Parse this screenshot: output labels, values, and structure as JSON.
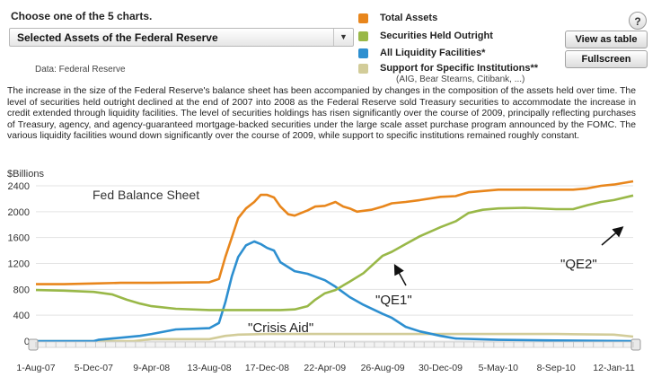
{
  "header": {
    "prompt": "Choose one of the 5 charts.",
    "selected_chart": "Selected Assets of the Federal Reserve",
    "source": "Data: Federal Reserve",
    "help_label": "?"
  },
  "buttons": {
    "view_table": "View as table",
    "fullscreen": "Fullscreen"
  },
  "legend": {
    "items": [
      {
        "label": "Total Assets",
        "color": "#e8861c"
      },
      {
        "label": "Securities Held Outright",
        "color": "#99b848"
      },
      {
        "label": "All Liquidity Facilities*",
        "color": "#2d8fd0"
      },
      {
        "label": "Support for Specific Institutions**",
        "color": "#d2cc99"
      }
    ],
    "note": "(AIG, Bear Stearns, Citibank, ...)"
  },
  "description": "The increase in the size of the Federal Reserve's balance sheet has been accompanied by changes in the composition of the assets held over time. The level of securities held outright declined at the end of 2007 into 2008 as the Federal Reserve sold Treasury securities to accommodate the increase in credit extended through liquidity facilities. The level of securities holdings has risen significantly over the course of 2009, principally reflecting purchases of Treasury, agency, and agency-guaranteed mortgage-backed securities under the large scale asset purchase program announced by the FOMC. The various liquidity facilities wound down significantly over the course of 2009, while support to specific institutions remained roughly constant.",
  "chart_data": {
    "type": "line",
    "title": "Fed Balance Sheet",
    "ylabel": "$Billions",
    "xlabel": "",
    "ylim": [
      0,
      2400
    ],
    "yticks": [
      0,
      400,
      800,
      1200,
      1600,
      2000,
      2400
    ],
    "xlim": [
      "2007-08-01",
      "2011-02-23"
    ],
    "x_tick_labels": [
      "1-Aug-07",
      "5-Dec-07",
      "9-Apr-08",
      "13-Aug-08",
      "17-Dec-08",
      "22-Apr-09",
      "26-Aug-09",
      "30-Dec-09",
      "5-May-10",
      "8-Sep-10",
      "12-Jan-11"
    ],
    "x_tick_dates": [
      "2007-08-01",
      "2007-12-05",
      "2008-04-09",
      "2008-08-13",
      "2008-12-17",
      "2009-04-22",
      "2009-08-26",
      "2009-12-30",
      "2010-05-05",
      "2010-09-08",
      "2011-01-12"
    ],
    "grid": true,
    "annotations": [
      "\"Crisis Aid\"",
      "\"QE1\"",
      "\"QE2\""
    ],
    "series": [
      {
        "name": "Total Assets",
        "color": "#e8861c",
        "points": [
          [
            "2007-08-01",
            880
          ],
          [
            "2007-10-01",
            880
          ],
          [
            "2007-12-05",
            890
          ],
          [
            "2008-02-01",
            900
          ],
          [
            "2008-04-09",
            900
          ],
          [
            "2008-06-01",
            905
          ],
          [
            "2008-08-13",
            910
          ],
          [
            "2008-09-03",
            960
          ],
          [
            "2008-09-17",
            1300
          ],
          [
            "2008-10-01",
            1600
          ],
          [
            "2008-10-15",
            1900
          ],
          [
            "2008-11-01",
            2050
          ],
          [
            "2008-11-19",
            2150
          ],
          [
            "2008-12-03",
            2260
          ],
          [
            "2008-12-17",
            2260
          ],
          [
            "2009-01-01",
            2220
          ],
          [
            "2009-01-15",
            2080
          ],
          [
            "2009-02-01",
            1960
          ],
          [
            "2009-02-15",
            1940
          ],
          [
            "2009-03-01",
            1980
          ],
          [
            "2009-03-15",
            2020
          ],
          [
            "2009-04-01",
            2080
          ],
          [
            "2009-04-22",
            2090
          ],
          [
            "2009-05-15",
            2150
          ],
          [
            "2009-06-01",
            2080
          ],
          [
            "2009-06-15",
            2050
          ],
          [
            "2009-07-01",
            2000
          ],
          [
            "2009-08-01",
            2030
          ],
          [
            "2009-08-26",
            2080
          ],
          [
            "2009-09-15",
            2130
          ],
          [
            "2009-10-15",
            2150
          ],
          [
            "2009-11-15",
            2180
          ],
          [
            "2009-12-30",
            2230
          ],
          [
            "2010-02-01",
            2240
          ],
          [
            "2010-03-01",
            2300
          ],
          [
            "2010-05-05",
            2340
          ],
          [
            "2010-07-01",
            2340
          ],
          [
            "2010-09-08",
            2340
          ],
          [
            "2010-10-15",
            2340
          ],
          [
            "2010-11-15",
            2360
          ],
          [
            "2010-12-15",
            2400
          ],
          [
            "2011-01-12",
            2420
          ],
          [
            "2011-02-23",
            2470
          ]
        ]
      },
      {
        "name": "Securities Held Outright",
        "color": "#99b848",
        "points": [
          [
            "2007-08-01",
            790
          ],
          [
            "2007-10-01",
            780
          ],
          [
            "2007-12-05",
            760
          ],
          [
            "2008-01-15",
            720
          ],
          [
            "2008-02-15",
            640
          ],
          [
            "2008-03-15",
            580
          ],
          [
            "2008-04-09",
            540
          ],
          [
            "2008-06-01",
            500
          ],
          [
            "2008-08-13",
            480
          ],
          [
            "2008-10-01",
            480
          ],
          [
            "2008-12-17",
            480
          ],
          [
            "2009-01-15",
            480
          ],
          [
            "2009-02-15",
            490
          ],
          [
            "2009-03-15",
            540
          ],
          [
            "2009-04-01",
            640
          ],
          [
            "2009-04-22",
            740
          ],
          [
            "2009-05-15",
            790
          ],
          [
            "2009-06-15",
            920
          ],
          [
            "2009-07-15",
            1050
          ],
          [
            "2009-08-26",
            1320
          ],
          [
            "2009-09-15",
            1380
          ],
          [
            "2009-10-15",
            1500
          ],
          [
            "2009-11-15",
            1620
          ],
          [
            "2009-12-30",
            1760
          ],
          [
            "2010-02-01",
            1850
          ],
          [
            "2010-03-01",
            1980
          ],
          [
            "2010-04-01",
            2030
          ],
          [
            "2010-05-05",
            2050
          ],
          [
            "2010-07-01",
            2060
          ],
          [
            "2010-09-08",
            2040
          ],
          [
            "2010-10-15",
            2040
          ],
          [
            "2010-11-15",
            2100
          ],
          [
            "2010-12-15",
            2150
          ],
          [
            "2011-01-12",
            2180
          ],
          [
            "2011-02-23",
            2250
          ]
        ]
      },
      {
        "name": "All Liquidity Facilities*",
        "color": "#2d8fd0",
        "points": [
          [
            "2007-08-01",
            0
          ],
          [
            "2007-12-05",
            0
          ],
          [
            "2007-12-15",
            20
          ],
          [
            "2008-01-15",
            40
          ],
          [
            "2008-03-15",
            80
          ],
          [
            "2008-04-09",
            110
          ],
          [
            "2008-06-01",
            180
          ],
          [
            "2008-08-13",
            200
          ],
          [
            "2008-09-03",
            280
          ],
          [
            "2008-09-17",
            600
          ],
          [
            "2008-10-01",
            1000
          ],
          [
            "2008-10-15",
            1300
          ],
          [
            "2008-11-01",
            1480
          ],
          [
            "2008-11-19",
            1540
          ],
          [
            "2008-12-03",
            1500
          ],
          [
            "2008-12-17",
            1440
          ],
          [
            "2009-01-01",
            1400
          ],
          [
            "2009-01-15",
            1220
          ],
          [
            "2009-02-15",
            1080
          ],
          [
            "2009-03-15",
            1040
          ],
          [
            "2009-04-22",
            940
          ],
          [
            "2009-05-15",
            840
          ],
          [
            "2009-06-15",
            680
          ],
          [
            "2009-07-15",
            560
          ],
          [
            "2009-08-26",
            420
          ],
          [
            "2009-09-15",
            360
          ],
          [
            "2009-10-15",
            220
          ],
          [
            "2009-11-15",
            150
          ],
          [
            "2009-12-30",
            80
          ],
          [
            "2010-02-01",
            40
          ],
          [
            "2010-05-05",
            20
          ],
          [
            "2010-09-08",
            10
          ],
          [
            "2011-02-23",
            0
          ]
        ]
      },
      {
        "name": "Support for Specific Institutions**",
        "color": "#d2cc99",
        "points": [
          [
            "2007-08-01",
            0
          ],
          [
            "2008-03-01",
            0
          ],
          [
            "2008-04-09",
            30
          ],
          [
            "2008-08-13",
            30
          ],
          [
            "2008-09-17",
            80
          ],
          [
            "2008-10-15",
            100
          ],
          [
            "2008-12-17",
            110
          ],
          [
            "2009-04-22",
            110
          ],
          [
            "2009-08-26",
            110
          ],
          [
            "2009-12-30",
            110
          ],
          [
            "2010-05-05",
            110
          ],
          [
            "2010-09-08",
            110
          ],
          [
            "2011-01-12",
            100
          ],
          [
            "2011-02-23",
            70
          ]
        ]
      }
    ]
  }
}
